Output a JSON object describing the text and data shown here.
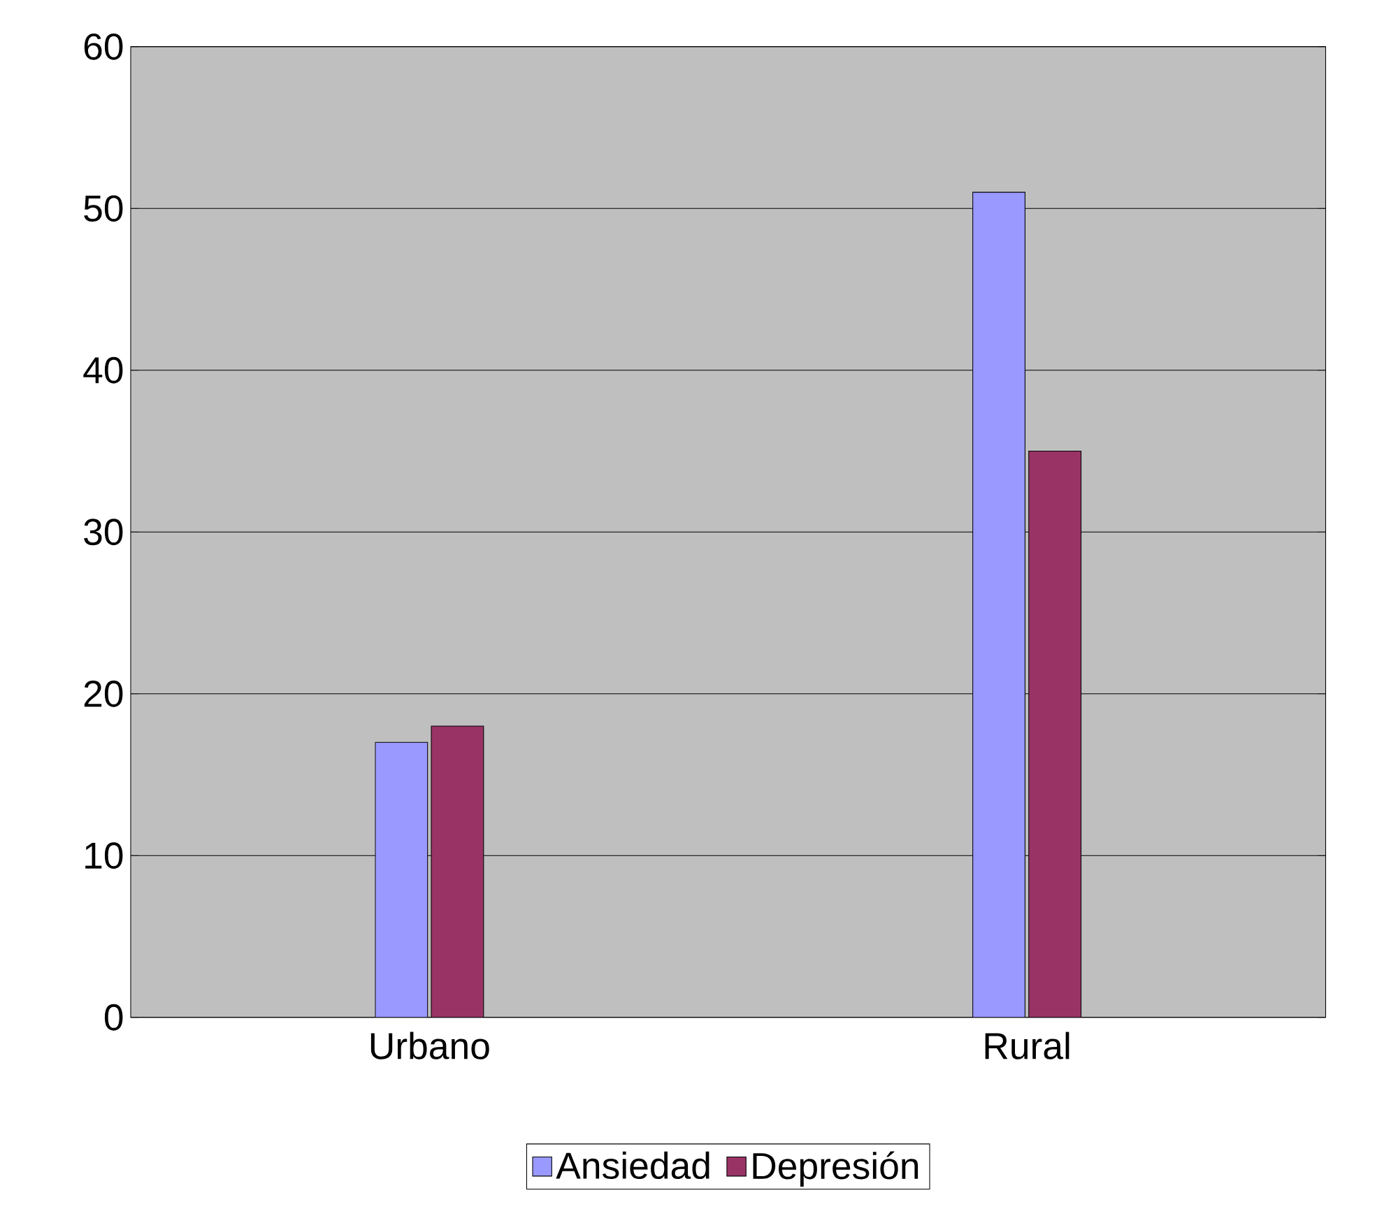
{
  "chart_data": {
    "type": "bar",
    "categories": [
      "Urbano",
      "Rural"
    ],
    "series": [
      {
        "name": "Ansiedad",
        "color": "#9999ff",
        "values": [
          17,
          51
        ]
      },
      {
        "name": "Depresión",
        "color": "#993366",
        "values": [
          18,
          35
        ]
      }
    ],
    "ylim": [
      0,
      60
    ],
    "yticks": [
      0,
      10,
      20,
      30,
      40,
      50,
      60
    ],
    "grid": "y",
    "legend": "bottom"
  }
}
